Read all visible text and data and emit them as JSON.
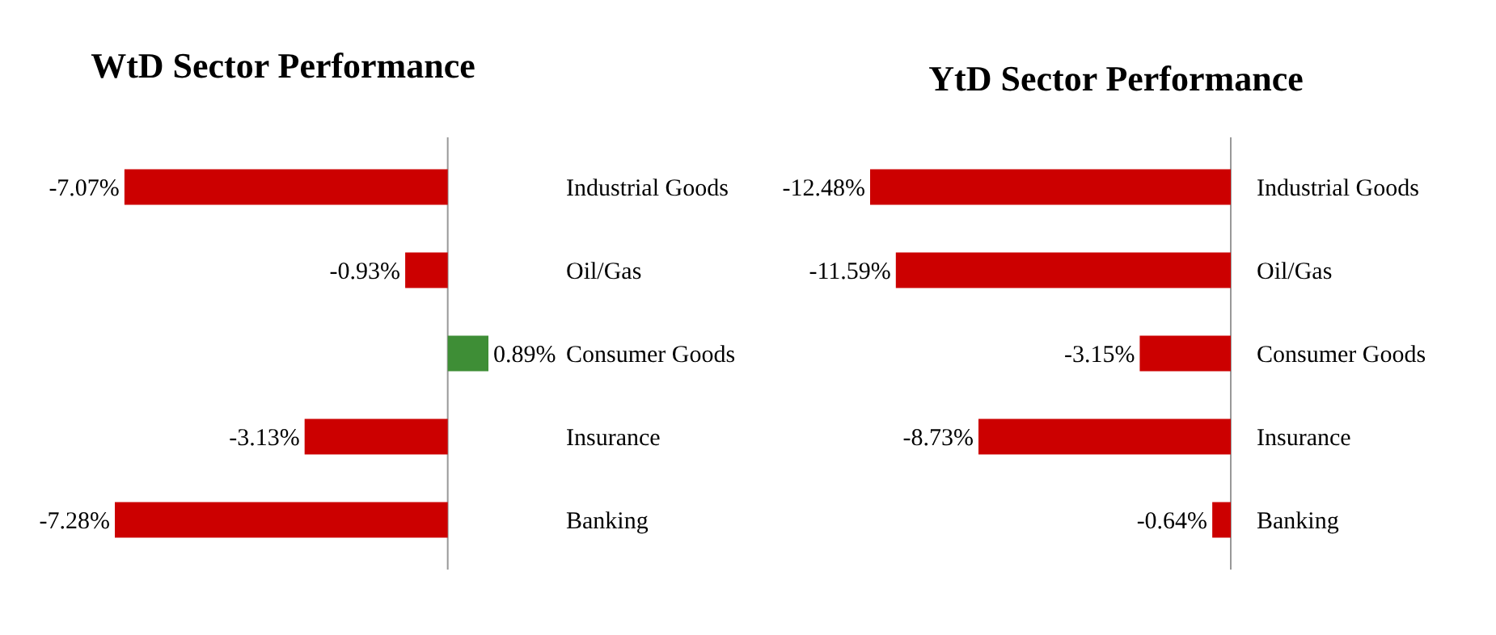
{
  "chart_data": [
    {
      "type": "bar",
      "orientation": "horizontal",
      "title": "WtD Sector Performance",
      "categories": [
        "Industrial Goods",
        "Oil/Gas",
        "Consumer Goods",
        "Insurance",
        "Banking"
      ],
      "values": [
        -7.07,
        -0.93,
        0.89,
        -3.13,
        -7.28
      ],
      "colors": [
        "#cc0000",
        "#cc0000",
        "#3e8e36",
        "#cc0000",
        "#cc0000"
      ],
      "value_labels": [
        "-7.07%",
        "-0.93%",
        "0.89%",
        "-3.13%",
        "-7.28%"
      ]
    },
    {
      "type": "bar",
      "orientation": "horizontal",
      "title": "YtD Sector Performance",
      "categories": [
        "Industrial Goods",
        "Oil/Gas",
        "Consumer Goods",
        "Insurance",
        "Banking"
      ],
      "values": [
        -12.48,
        -11.59,
        -3.15,
        -8.73,
        -0.64
      ],
      "colors": [
        "#cc0000",
        "#cc0000",
        "#cc0000",
        "#cc0000",
        "#cc0000"
      ],
      "value_labels": [
        "-12.48%",
        "-11.59%",
        "-3.15%",
        "-8.73%",
        "-0.64%"
      ]
    }
  ]
}
